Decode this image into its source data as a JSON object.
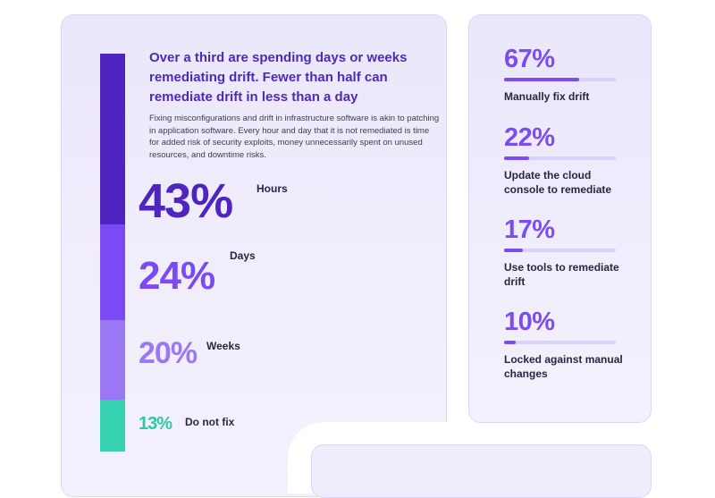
{
  "headline": "Over a third are spending days or weeks remediating drift. Fewer than half can remediate drift in less than a day",
  "description": "Fixing misconfigurations and drift in infrastructure software is akin to patching in application software. Every hour and day that it is not remediated is time for added risk of security exploits, money unnecessarily spent on unused resources, and downtime risks.",
  "colors": {
    "hours": "#4f25c2",
    "days": "#7b4af5",
    "weeks": "#9a77f5",
    "do_not_fix": "#36d1b0",
    "accent": "#7d4cf0"
  },
  "chart_data": [
    {
      "type": "bar",
      "orientation": "stacked-vertical",
      "categories": [
        "Hours",
        "Days",
        "Weeks",
        "Do not fix"
      ],
      "values": [
        43,
        24,
        20,
        13
      ],
      "labels": [
        "43%",
        "24%",
        "20%",
        "13%"
      ],
      "unit": "%"
    },
    {
      "type": "bar",
      "orientation": "horizontal",
      "categories": [
        "Manually fix drift",
        "Update the cloud console to remediate",
        "Use tools to remediate drift",
        "Locked against manual changes"
      ],
      "values": [
        67,
        22,
        17,
        10
      ],
      "labels": [
        "67%",
        "22%",
        "17%",
        "10%"
      ],
      "xlim": [
        0,
        100
      ],
      "unit": "%"
    }
  ]
}
